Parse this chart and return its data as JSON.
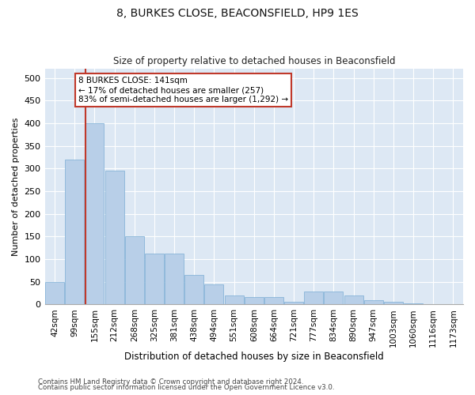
{
  "title": "8, BURKES CLOSE, BEACONSFIELD, HP9 1ES",
  "subtitle": "Size of property relative to detached houses in Beaconsfield",
  "xlabel": "Distribution of detached houses by size in Beaconsfield",
  "ylabel": "Number of detached properties",
  "categories": [
    "42sqm",
    "99sqm",
    "155sqm",
    "212sqm",
    "268sqm",
    "325sqm",
    "381sqm",
    "438sqm",
    "494sqm",
    "551sqm",
    "608sqm",
    "664sqm",
    "721sqm",
    "777sqm",
    "834sqm",
    "890sqm",
    "947sqm",
    "1003sqm",
    "1060sqm",
    "1116sqm",
    "1173sqm"
  ],
  "values": [
    50,
    320,
    400,
    295,
    150,
    113,
    113,
    65,
    45,
    20,
    17,
    17,
    5,
    28,
    28,
    20,
    10,
    5,
    2,
    1,
    1
  ],
  "bar_color": "#b8cfe8",
  "bar_edge_color": "#7aadd4",
  "vline_color": "#c0392b",
  "vline_x_index": 1.55,
  "annotation_text": "8 BURKES CLOSE: 141sqm\n← 17% of detached houses are smaller (257)\n83% of semi-detached houses are larger (1,292) →",
  "annotation_box_color": "#ffffff",
  "annotation_box_edge_color": "#c0392b",
  "ylim": [
    0,
    520
  ],
  "yticks": [
    0,
    50,
    100,
    150,
    200,
    250,
    300,
    350,
    400,
    450,
    500
  ],
  "bg_color": "#dde8f4",
  "footer1": "Contains HM Land Registry data © Crown copyright and database right 2024.",
  "footer2": "Contains public sector information licensed under the Open Government Licence v3.0."
}
